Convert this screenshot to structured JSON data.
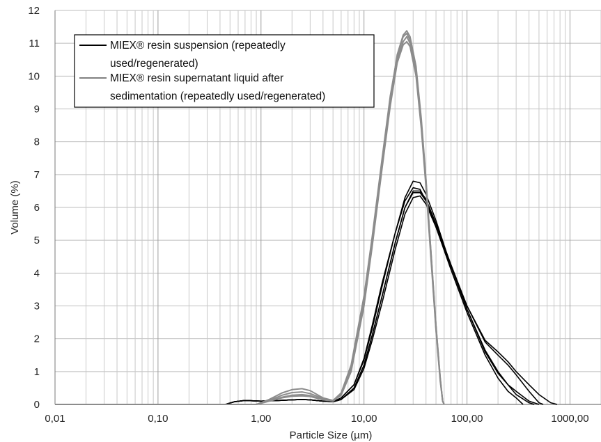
{
  "chart_data": {
    "type": "line",
    "title": "",
    "xlabel": "Particle Size (µm)",
    "ylabel": "Volume (%)",
    "x_scale": "log",
    "xlim": [
      0.01,
      2000
    ],
    "ylim": [
      0,
      12
    ],
    "grid": true,
    "legend_position": "top-left",
    "x_tick_values": [
      0.01,
      0.1,
      1,
      10,
      100,
      1000
    ],
    "x_tick_labels": [
      "0,01",
      "0,10",
      "1,00",
      "10,00",
      "100,00",
      "1000,00"
    ],
    "y_tick_values": [
      0,
      1,
      2,
      3,
      4,
      5,
      6,
      7,
      8,
      9,
      10,
      11,
      12
    ],
    "y_tick_labels": [
      "0",
      "1",
      "2",
      "3",
      "4",
      "5",
      "6",
      "7",
      "8",
      "9",
      "10",
      "11",
      "12"
    ],
    "legend": [
      {
        "lines": [
          "MIEX® resin suspension (repeatedly",
          "used/regenerated)"
        ],
        "color": "#000000"
      },
      {
        "lines": [
          "MIEX® resin supernatant liquid after",
          "sedimentation (repeatedly used/regenerated)"
        ],
        "color": "#808080"
      }
    ],
    "series": [
      {
        "group": "suspension",
        "color": "#000000",
        "points": [
          [
            0.01,
            0
          ],
          [
            0.45,
            0
          ],
          [
            0.55,
            0.08
          ],
          [
            0.7,
            0.12
          ],
          [
            1.0,
            0.1
          ],
          [
            1.5,
            0.12
          ],
          [
            2.0,
            0.14
          ],
          [
            2.5,
            0.15
          ],
          [
            3.0,
            0.14
          ],
          [
            4.0,
            0.1
          ],
          [
            5.0,
            0.08
          ],
          [
            6.0,
            0.2
          ],
          [
            8.0,
            0.6
          ],
          [
            10,
            1.4
          ],
          [
            12,
            2.4
          ],
          [
            15,
            3.7
          ],
          [
            20,
            5.2
          ],
          [
            25,
            6.2
          ],
          [
            30,
            6.6
          ],
          [
            35,
            6.55
          ],
          [
            40,
            6.2
          ],
          [
            50,
            5.4
          ],
          [
            70,
            4.1
          ],
          [
            100,
            2.8
          ],
          [
            150,
            1.5
          ],
          [
            200,
            0.8
          ],
          [
            250,
            0.4
          ],
          [
            300,
            0.2
          ],
          [
            350,
            0
          ]
        ]
      },
      {
        "group": "suspension",
        "color": "#000000",
        "points": [
          [
            0.01,
            0
          ],
          [
            0.45,
            0
          ],
          [
            0.55,
            0.08
          ],
          [
            0.7,
            0.12
          ],
          [
            1.0,
            0.1
          ],
          [
            1.5,
            0.12
          ],
          [
            2.0,
            0.14
          ],
          [
            2.5,
            0.15
          ],
          [
            3.0,
            0.14
          ],
          [
            4.0,
            0.1
          ],
          [
            5.0,
            0.08
          ],
          [
            6.0,
            0.15
          ],
          [
            8.0,
            0.5
          ],
          [
            10,
            1.2
          ],
          [
            12,
            2.1
          ],
          [
            15,
            3.3
          ],
          [
            20,
            4.9
          ],
          [
            25,
            6.0
          ],
          [
            30,
            6.5
          ],
          [
            35,
            6.5
          ],
          [
            40,
            6.25
          ],
          [
            50,
            5.5
          ],
          [
            70,
            4.2
          ],
          [
            100,
            2.9
          ],
          [
            150,
            1.65
          ],
          [
            200,
            1.0
          ],
          [
            250,
            0.6
          ],
          [
            300,
            0.3
          ],
          [
            400,
            0.05
          ],
          [
            450,
            0
          ]
        ]
      },
      {
        "group": "suspension",
        "color": "#000000",
        "points": [
          [
            0.01,
            0
          ],
          [
            0.45,
            0
          ],
          [
            0.55,
            0.08
          ],
          [
            0.7,
            0.12
          ],
          [
            1.0,
            0.1
          ],
          [
            1.5,
            0.12
          ],
          [
            2.0,
            0.14
          ],
          [
            2.5,
            0.15
          ],
          [
            3.0,
            0.14
          ],
          [
            4.0,
            0.1
          ],
          [
            5.0,
            0.08
          ],
          [
            6.0,
            0.2
          ],
          [
            8.0,
            0.6
          ],
          [
            10,
            1.35
          ],
          [
            12,
            2.3
          ],
          [
            15,
            3.6
          ],
          [
            20,
            5.2
          ],
          [
            25,
            6.3
          ],
          [
            30,
            6.8
          ],
          [
            35,
            6.75
          ],
          [
            40,
            6.4
          ],
          [
            50,
            5.6
          ],
          [
            70,
            4.2
          ],
          [
            100,
            2.9
          ],
          [
            150,
            1.6
          ],
          [
            200,
            0.95
          ],
          [
            250,
            0.6
          ],
          [
            300,
            0.4
          ],
          [
            400,
            0.1
          ],
          [
            500,
            0
          ]
        ]
      },
      {
        "group": "suspension",
        "color": "#000000",
        "points": [
          [
            0.01,
            0
          ],
          [
            0.45,
            0
          ],
          [
            0.55,
            0.08
          ],
          [
            0.7,
            0.12
          ],
          [
            1.0,
            0.1
          ],
          [
            1.5,
            0.12
          ],
          [
            2.0,
            0.14
          ],
          [
            2.5,
            0.15
          ],
          [
            3.0,
            0.14
          ],
          [
            4.0,
            0.1
          ],
          [
            5.0,
            0.08
          ],
          [
            6.0,
            0.15
          ],
          [
            8.0,
            0.45
          ],
          [
            10,
            1.1
          ],
          [
            12,
            1.95
          ],
          [
            15,
            3.1
          ],
          [
            20,
            4.7
          ],
          [
            25,
            5.8
          ],
          [
            30,
            6.3
          ],
          [
            35,
            6.35
          ],
          [
            40,
            6.1
          ],
          [
            50,
            5.4
          ],
          [
            70,
            4.2
          ],
          [
            100,
            3.0
          ],
          [
            150,
            1.9
          ],
          [
            200,
            1.5
          ],
          [
            250,
            1.2
          ],
          [
            300,
            0.9
          ],
          [
            400,
            0.4
          ],
          [
            500,
            0.05
          ],
          [
            550,
            0
          ]
        ]
      },
      {
        "group": "suspension",
        "color": "#000000",
        "points": [
          [
            0.01,
            0
          ],
          [
            0.45,
            0
          ],
          [
            0.55,
            0.08
          ],
          [
            0.7,
            0.12
          ],
          [
            1.0,
            0.1
          ],
          [
            1.5,
            0.12
          ],
          [
            2.0,
            0.14
          ],
          [
            2.5,
            0.15
          ],
          [
            3.0,
            0.14
          ],
          [
            4.0,
            0.1
          ],
          [
            5.0,
            0.08
          ],
          [
            6.0,
            0.15
          ],
          [
            8.0,
            0.5
          ],
          [
            10,
            1.2
          ],
          [
            12,
            2.1
          ],
          [
            15,
            3.3
          ],
          [
            20,
            4.9
          ],
          [
            25,
            6.0
          ],
          [
            30,
            6.45
          ],
          [
            35,
            6.45
          ],
          [
            40,
            6.2
          ],
          [
            50,
            5.5
          ],
          [
            70,
            4.25
          ],
          [
            100,
            3.0
          ],
          [
            150,
            1.95
          ],
          [
            200,
            1.6
          ],
          [
            250,
            1.3
          ],
          [
            300,
            1.0
          ],
          [
            400,
            0.6
          ],
          [
            500,
            0.3
          ],
          [
            650,
            0.05
          ],
          [
            750,
            0
          ]
        ]
      },
      {
        "group": "supernatant",
        "color": "#8c8c8c",
        "points": [
          [
            0.01,
            0
          ],
          [
            0.9,
            0
          ],
          [
            1.2,
            0.15
          ],
          [
            1.6,
            0.35
          ],
          [
            2.0,
            0.45
          ],
          [
            2.5,
            0.48
          ],
          [
            3.0,
            0.42
          ],
          [
            4.0,
            0.2
          ],
          [
            5.0,
            0.12
          ],
          [
            6.0,
            0.35
          ],
          [
            7.5,
            1.2
          ],
          [
            10,
            3.3
          ],
          [
            12,
            5.1
          ],
          [
            15,
            7.5
          ],
          [
            18,
            9.4
          ],
          [
            21,
            10.6
          ],
          [
            24,
            11.2
          ],
          [
            26,
            11.3
          ],
          [
            28,
            11.1
          ],
          [
            32,
            10.2
          ],
          [
            36,
            8.6
          ],
          [
            40,
            6.8
          ],
          [
            45,
            4.5
          ],
          [
            50,
            2.4
          ],
          [
            55,
            0.8
          ],
          [
            58,
            0.1
          ],
          [
            60,
            0
          ]
        ]
      },
      {
        "group": "supernatant",
        "color": "#8c8c8c",
        "points": [
          [
            0.01,
            0
          ],
          [
            0.9,
            0
          ],
          [
            1.2,
            0.12
          ],
          [
            1.6,
            0.28
          ],
          [
            2.0,
            0.36
          ],
          [
            2.5,
            0.38
          ],
          [
            3.0,
            0.33
          ],
          [
            4.0,
            0.18
          ],
          [
            5.0,
            0.1
          ],
          [
            6.0,
            0.3
          ],
          [
            7.5,
            1.1
          ],
          [
            10,
            3.1
          ],
          [
            12,
            4.9
          ],
          [
            15,
            7.3
          ],
          [
            18,
            9.2
          ],
          [
            21,
            10.5
          ],
          [
            24,
            11.05
          ],
          [
            26,
            11.2
          ],
          [
            28,
            11.0
          ],
          [
            32,
            10.1
          ],
          [
            36,
            8.5
          ],
          [
            40,
            6.7
          ],
          [
            45,
            4.4
          ],
          [
            50,
            2.3
          ],
          [
            55,
            0.75
          ],
          [
            58,
            0.1
          ],
          [
            60,
            0
          ]
        ]
      },
      {
        "group": "supernatant",
        "color": "#8c8c8c",
        "points": [
          [
            0.01,
            0
          ],
          [
            0.9,
            0
          ],
          [
            1.2,
            0.1
          ],
          [
            1.6,
            0.22
          ],
          [
            2.0,
            0.28
          ],
          [
            2.5,
            0.3
          ],
          [
            3.0,
            0.27
          ],
          [
            4.0,
            0.15
          ],
          [
            5.0,
            0.1
          ],
          [
            6.0,
            0.28
          ],
          [
            7.5,
            1.0
          ],
          [
            10,
            3.0
          ],
          [
            12,
            4.8
          ],
          [
            15,
            7.2
          ],
          [
            18,
            9.1
          ],
          [
            21,
            10.4
          ],
          [
            24,
            10.95
          ],
          [
            26,
            11.05
          ],
          [
            28,
            10.9
          ],
          [
            32,
            10.0
          ],
          [
            36,
            8.4
          ],
          [
            40,
            6.6
          ],
          [
            45,
            4.3
          ],
          [
            50,
            2.25
          ],
          [
            55,
            0.7
          ],
          [
            58,
            0.1
          ],
          [
            60,
            0
          ]
        ]
      },
      {
        "group": "supernatant",
        "color": "#8c8c8c",
        "points": [
          [
            0.01,
            0
          ],
          [
            0.9,
            0
          ],
          [
            1.2,
            0.1
          ],
          [
            1.6,
            0.2
          ],
          [
            2.0,
            0.25
          ],
          [
            2.5,
            0.26
          ],
          [
            3.0,
            0.24
          ],
          [
            4.0,
            0.14
          ],
          [
            5.0,
            0.1
          ],
          [
            6.0,
            0.3
          ],
          [
            7.5,
            1.15
          ],
          [
            10,
            3.2
          ],
          [
            12,
            5.0
          ],
          [
            15,
            7.4
          ],
          [
            18,
            9.3
          ],
          [
            21,
            10.65
          ],
          [
            24,
            11.25
          ],
          [
            26,
            11.38
          ],
          [
            28,
            11.2
          ],
          [
            32,
            10.3
          ],
          [
            36,
            8.7
          ],
          [
            40,
            6.85
          ],
          [
            45,
            4.5
          ],
          [
            50,
            2.4
          ],
          [
            55,
            0.8
          ],
          [
            58,
            0.1
          ],
          [
            60,
            0
          ]
        ]
      }
    ]
  }
}
